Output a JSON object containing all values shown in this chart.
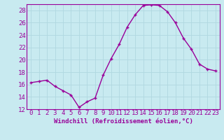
{
  "x": [
    0,
    1,
    2,
    3,
    4,
    5,
    6,
    7,
    8,
    9,
    10,
    11,
    12,
    13,
    14,
    15,
    16,
    17,
    18,
    19,
    20,
    21,
    22,
    23
  ],
  "y": [
    16.3,
    16.5,
    16.7,
    15.7,
    15.0,
    14.3,
    12.3,
    13.2,
    13.8,
    17.5,
    20.2,
    22.5,
    25.3,
    27.3,
    28.8,
    28.9,
    28.8,
    27.8,
    26.0,
    23.5,
    21.7,
    19.3,
    18.5,
    18.2
  ],
  "line_color": "#990099",
  "marker": "+",
  "bg_color": "#c8eaf0",
  "grid_color": "#b0d8e0",
  "xlabel": "Windchill (Refroidissement éolien,°C)",
  "xlabel_color": "#990099",
  "tick_color": "#990099",
  "ylim": [
    12,
    29
  ],
  "xlim": [
    -0.5,
    23.5
  ],
  "yticks": [
    12,
    14,
    16,
    18,
    20,
    22,
    24,
    26,
    28
  ],
  "xticks": [
    0,
    1,
    2,
    3,
    4,
    5,
    6,
    7,
    8,
    9,
    10,
    11,
    12,
    13,
    14,
    15,
    16,
    17,
    18,
    19,
    20,
    21,
    22,
    23
  ],
  "font_size": 6.5
}
